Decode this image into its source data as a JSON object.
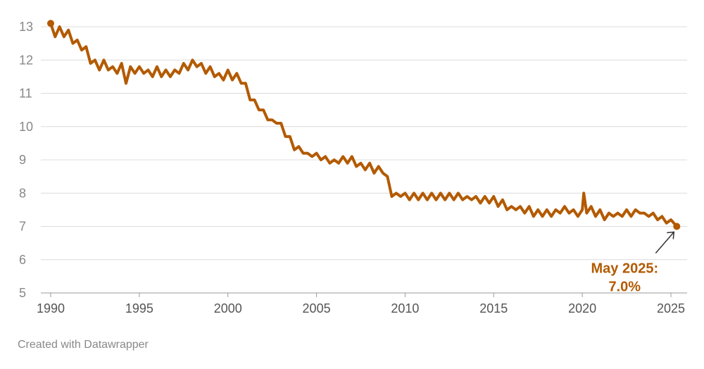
{
  "chart_data": {
    "type": "line",
    "title": "",
    "xlabel": "",
    "ylabel": "",
    "xlim": [
      1990,
      2025.5
    ],
    "ylim": [
      5,
      13.2
    ],
    "x_ticks": [
      "1990",
      "1995",
      "2000",
      "2005",
      "2010",
      "2015",
      "2020",
      "2025"
    ],
    "y_ticks": [
      "5",
      "6",
      "7",
      "8",
      "9",
      "10",
      "11",
      "12",
      "13"
    ],
    "grid": true,
    "legend": "none",
    "color": "#b35a00",
    "series": [
      {
        "x": [
          1990.0,
          1990.25,
          1990.5,
          1990.75,
          1991.0,
          1991.25,
          1991.5,
          1991.75,
          1992.0,
          1992.25,
          1992.5,
          1992.75,
          1993.0,
          1993.25,
          1993.5,
          1993.75,
          1994.0,
          1994.25,
          1994.5,
          1994.75,
          1995.0,
          1995.25,
          1995.5,
          1995.75,
          1996.0,
          1996.25,
          1996.5,
          1996.75,
          1997.0,
          1997.25,
          1997.5,
          1997.75,
          1998.0,
          1998.25,
          1998.5,
          1998.75,
          1999.0,
          1999.25,
          1999.5,
          1999.75,
          2000.0,
          2000.25,
          2000.5,
          2000.75,
          2001.0,
          2001.25,
          2001.5,
          2001.75,
          2002.0,
          2002.25,
          2002.5,
          2002.75,
          2003.0,
          2003.25,
          2003.5,
          2003.75,
          2004.0,
          2004.25,
          2004.5,
          2004.75,
          2005.0,
          2005.25,
          2005.5,
          2005.75,
          2006.0,
          2006.25,
          2006.5,
          2006.75,
          2007.0,
          2007.25,
          2007.5,
          2007.75,
          2008.0,
          2008.25,
          2008.5,
          2008.75,
          2009.0,
          2009.25,
          2009.5,
          2009.75,
          2010.0,
          2010.25,
          2010.5,
          2010.75,
          2011.0,
          2011.25,
          2011.5,
          2011.75,
          2012.0,
          2012.25,
          2012.5,
          2012.75,
          2013.0,
          2013.25,
          2013.5,
          2013.75,
          2014.0,
          2014.25,
          2014.5,
          2014.75,
          2015.0,
          2015.25,
          2015.5,
          2015.75,
          2016.0,
          2016.25,
          2016.5,
          2016.75,
          2017.0,
          2017.25,
          2017.5,
          2017.75,
          2018.0,
          2018.25,
          2018.5,
          2018.75,
          2019.0,
          2019.25,
          2019.5,
          2019.75,
          2020.0,
          2020.08,
          2020.25,
          2020.5,
          2020.75,
          2021.0,
          2021.25,
          2021.5,
          2021.75,
          2022.0,
          2022.25,
          2022.5,
          2022.75,
          2023.0,
          2023.25,
          2023.5,
          2023.75,
          2024.0,
          2024.25,
          2024.5,
          2024.75,
          2025.0,
          2025.33
        ],
        "values": [
          13.1,
          12.7,
          13.0,
          12.7,
          12.9,
          12.5,
          12.6,
          12.3,
          12.4,
          11.9,
          12.0,
          11.7,
          12.0,
          11.7,
          11.8,
          11.6,
          11.9,
          11.3,
          11.8,
          11.6,
          11.8,
          11.6,
          11.7,
          11.5,
          11.8,
          11.5,
          11.7,
          11.5,
          11.7,
          11.6,
          11.9,
          11.7,
          12.0,
          11.8,
          11.9,
          11.6,
          11.8,
          11.5,
          11.6,
          11.4,
          11.7,
          11.4,
          11.6,
          11.3,
          11.3,
          10.8,
          10.8,
          10.5,
          10.5,
          10.2,
          10.2,
          10.1,
          10.1,
          9.7,
          9.7,
          9.3,
          9.4,
          9.2,
          9.2,
          9.1,
          9.2,
          9.0,
          9.1,
          8.9,
          9.0,
          8.9,
          9.1,
          8.9,
          9.1,
          8.8,
          8.9,
          8.7,
          8.9,
          8.6,
          8.8,
          8.6,
          8.5,
          7.9,
          8.0,
          7.9,
          8.0,
          7.8,
          8.0,
          7.8,
          8.0,
          7.8,
          8.0,
          7.8,
          8.0,
          7.8,
          8.0,
          7.8,
          8.0,
          7.8,
          7.9,
          7.8,
          7.9,
          7.7,
          7.9,
          7.7,
          7.9,
          7.6,
          7.8,
          7.5,
          7.6,
          7.5,
          7.6,
          7.4,
          7.6,
          7.3,
          7.5,
          7.3,
          7.5,
          7.3,
          7.5,
          7.4,
          7.6,
          7.4,
          7.5,
          7.3,
          7.5,
          8.0,
          7.4,
          7.6,
          7.3,
          7.5,
          7.2,
          7.4,
          7.3,
          7.4,
          7.3,
          7.5,
          7.3,
          7.5,
          7.4,
          7.4,
          7.3,
          7.4,
          7.2,
          7.3,
          7.1,
          7.2,
          7.0
        ]
      }
    ],
    "annotation": {
      "line1": "May 2025:",
      "line2": "7.0%"
    }
  },
  "footer": {
    "credit": "Created with Datawrapper"
  }
}
